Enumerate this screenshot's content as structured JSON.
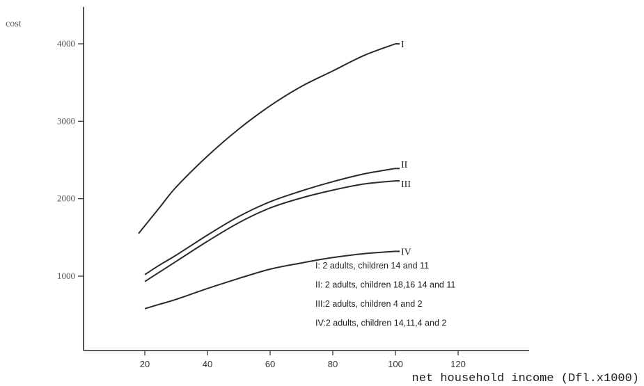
{
  "chart_data": {
    "type": "line",
    "xlabel": "net household income (Dfl.x1000)",
    "ylabel": "cost",
    "xlim": [
      0,
      140
    ],
    "ylim": [
      0,
      4300
    ],
    "x_ticks": [
      "20",
      "40",
      "60",
      "80",
      "100",
      "120"
    ],
    "y_ticks": [
      "1000",
      "2000",
      "3000",
      "4000"
    ],
    "series": [
      {
        "name": "I",
        "points": [
          [
            18,
            1550
          ],
          [
            20,
            1650
          ],
          [
            25,
            1900
          ],
          [
            30,
            2150
          ],
          [
            40,
            2550
          ],
          [
            50,
            2900
          ],
          [
            60,
            3200
          ],
          [
            70,
            3450
          ],
          [
            80,
            3650
          ],
          [
            90,
            3850
          ],
          [
            100,
            4000
          ]
        ]
      },
      {
        "name": "II",
        "points": [
          [
            20,
            1020
          ],
          [
            25,
            1150
          ],
          [
            30,
            1270
          ],
          [
            40,
            1530
          ],
          [
            50,
            1770
          ],
          [
            60,
            1960
          ],
          [
            70,
            2100
          ],
          [
            80,
            2220
          ],
          [
            90,
            2320
          ],
          [
            100,
            2390
          ]
        ]
      },
      {
        "name": "III",
        "points": [
          [
            20,
            930
          ],
          [
            25,
            1060
          ],
          [
            30,
            1190
          ],
          [
            40,
            1450
          ],
          [
            50,
            1690
          ],
          [
            60,
            1880
          ],
          [
            70,
            2010
          ],
          [
            80,
            2110
          ],
          [
            90,
            2190
          ],
          [
            100,
            2230
          ]
        ]
      },
      {
        "name": "IV",
        "points": [
          [
            20,
            580
          ],
          [
            25,
            640
          ],
          [
            30,
            700
          ],
          [
            40,
            840
          ],
          [
            50,
            970
          ],
          [
            60,
            1090
          ],
          [
            70,
            1170
          ],
          [
            80,
            1240
          ],
          [
            90,
            1290
          ],
          [
            100,
            1320
          ]
        ]
      }
    ],
    "legend": [
      "I: 2 adults, children 14 and 11",
      "II: 2 adults, children 18,16 14 and 11",
      "III:2 adults, children 4 and 2",
      "IV:2 adults, children 14,11,4 and 2"
    ],
    "legend_position": "lower-right",
    "grid": false
  }
}
